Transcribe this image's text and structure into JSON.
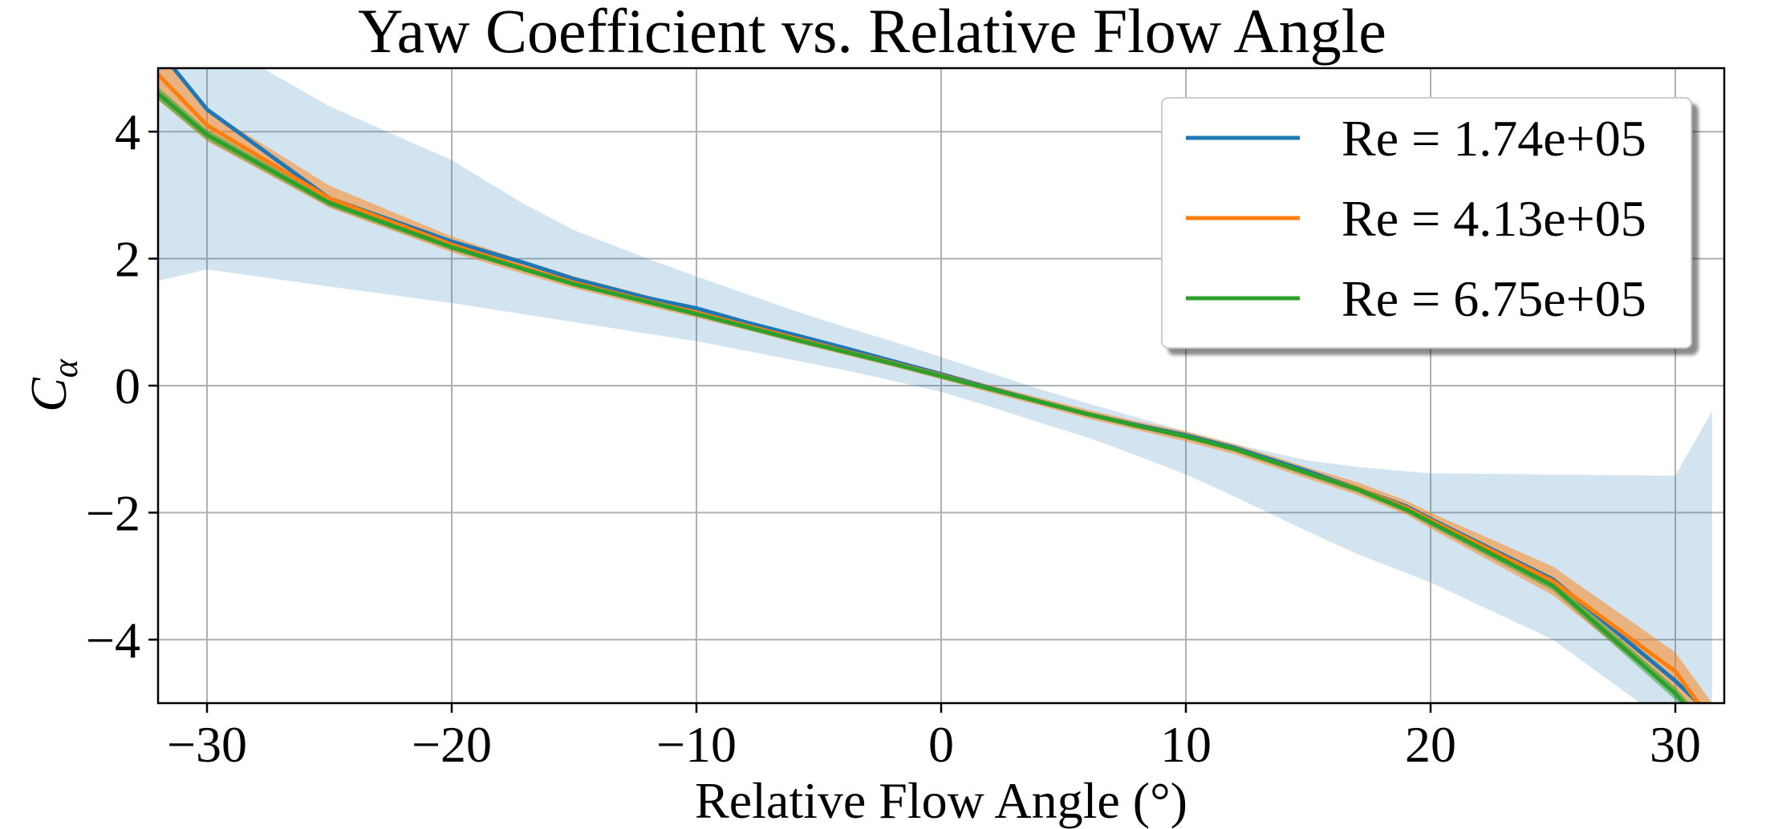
{
  "chart_data": {
    "type": "line",
    "title": "Yaw Coefficient vs. Relative Flow Angle",
    "xlabel": "Relative Flow Angle (°)",
    "ylabel_main": "C",
    "ylabel_sub": "α",
    "xlim": [
      -32,
      32
    ],
    "ylim": [
      -5,
      5
    ],
    "xticks": [
      -30,
      -20,
      -10,
      0,
      10,
      20,
      30
    ],
    "yticks": [
      -4,
      -2,
      0,
      2,
      4
    ],
    "xtick_labels": [
      "−30",
      "−20",
      "−10",
      "0",
      "10",
      "20",
      "30"
    ],
    "ytick_labels": [
      "−4",
      "−2",
      "0",
      "2",
      "4"
    ],
    "grid": true,
    "legend_position": "top-right",
    "x": [
      -32,
      -30,
      -25,
      -20,
      -17,
      -15,
      -12,
      -10,
      -8,
      -6,
      -4,
      -2,
      0,
      2,
      4,
      6,
      8,
      10,
      12,
      15,
      17,
      19,
      20,
      25,
      30,
      31.5
    ],
    "series": [
      {
        "name": "Re = 1.74e+05",
        "color": "#1f77b4",
        "values": [
          5.3,
          4.35,
          2.95,
          2.27,
          1.93,
          1.68,
          1.38,
          1.22,
          1.0,
          0.8,
          0.6,
          0.39,
          0.18,
          -0.04,
          -0.25,
          -0.45,
          -0.62,
          -0.78,
          -0.98,
          -1.35,
          -1.62,
          -1.9,
          -2.1,
          -3.05,
          -4.65,
          -5.2
        ],
        "band_lower": [
          1.65,
          1.83,
          1.56,
          1.3,
          1.12,
          1.0,
          0.82,
          0.7,
          0.55,
          0.4,
          0.25,
          0.08,
          -0.1,
          -0.33,
          -0.58,
          -0.82,
          -1.1,
          -1.4,
          -1.75,
          -2.3,
          -2.65,
          -2.95,
          -3.1,
          -4.0,
          -5.4,
          -5.6
        ],
        "band_upper": [
          5.5,
          5.5,
          4.4,
          3.55,
          2.85,
          2.45,
          2.0,
          1.72,
          1.45,
          1.18,
          0.93,
          0.7,
          0.45,
          0.2,
          -0.05,
          -0.28,
          -0.5,
          -0.72,
          -0.92,
          -1.18,
          -1.28,
          -1.35,
          -1.38,
          -1.4,
          -1.42,
          -0.4
        ]
      },
      {
        "name": "Re = 4.13e+05",
        "color": "#ff7f0e",
        "values": [
          4.9,
          4.1,
          2.95,
          2.22,
          1.85,
          1.62,
          1.33,
          1.15,
          0.95,
          0.75,
          0.55,
          0.36,
          0.16,
          -0.05,
          -0.25,
          -0.45,
          -0.63,
          -0.8,
          -1.0,
          -1.38,
          -1.62,
          -1.92,
          -2.12,
          -3.08,
          -4.5,
          -5.3
        ],
        "band_lower": [
          4.5,
          3.85,
          2.8,
          2.1,
          1.75,
          1.53,
          1.25,
          1.07,
          0.88,
          0.68,
          0.49,
          0.3,
          0.1,
          -0.11,
          -0.31,
          -0.52,
          -0.7,
          -0.88,
          -1.08,
          -1.47,
          -1.72,
          -2.03,
          -2.25,
          -3.3,
          -4.85,
          -5.5
        ],
        "band_upper": [
          5.3,
          4.35,
          3.15,
          2.35,
          1.96,
          1.72,
          1.42,
          1.23,
          1.02,
          0.82,
          0.61,
          0.42,
          0.22,
          0.01,
          -0.19,
          -0.38,
          -0.56,
          -0.72,
          -0.92,
          -1.29,
          -1.52,
          -1.81,
          -2.0,
          -2.85,
          -4.2,
          -5.0
        ]
      },
      {
        "name": "Re = 6.75e+05",
        "color": "#2ca02c",
        "values": [
          4.6,
          3.95,
          2.88,
          2.18,
          1.83,
          1.6,
          1.32,
          1.13,
          0.93,
          0.73,
          0.54,
          0.35,
          0.15,
          -0.05,
          -0.25,
          -0.45,
          -0.63,
          -0.8,
          -1.0,
          -1.38,
          -1.63,
          -1.95,
          -2.15,
          -3.15,
          -4.85,
          -5.5
        ],
        "band_lower": [
          4.5,
          3.87,
          2.82,
          2.13,
          1.79,
          1.56,
          1.28,
          1.09,
          0.89,
          0.69,
          0.5,
          0.31,
          0.11,
          -0.09,
          -0.29,
          -0.49,
          -0.67,
          -0.84,
          -1.04,
          -1.43,
          -1.68,
          -2.0,
          -2.21,
          -3.23,
          -4.95,
          -5.5
        ],
        "band_upper": [
          4.7,
          4.03,
          2.94,
          2.23,
          1.87,
          1.64,
          1.36,
          1.17,
          0.97,
          0.77,
          0.58,
          0.39,
          0.19,
          -0.01,
          -0.21,
          -0.41,
          -0.59,
          -0.76,
          -0.96,
          -1.33,
          -1.58,
          -1.9,
          -2.09,
          -3.07,
          -4.75,
          -5.4
        ]
      }
    ]
  },
  "colors": {
    "grid": "#b0b0b0",
    "band_blue": "#1f77b4",
    "band_orange": "#ff7f0e",
    "band_green": "#2ca02c"
  }
}
